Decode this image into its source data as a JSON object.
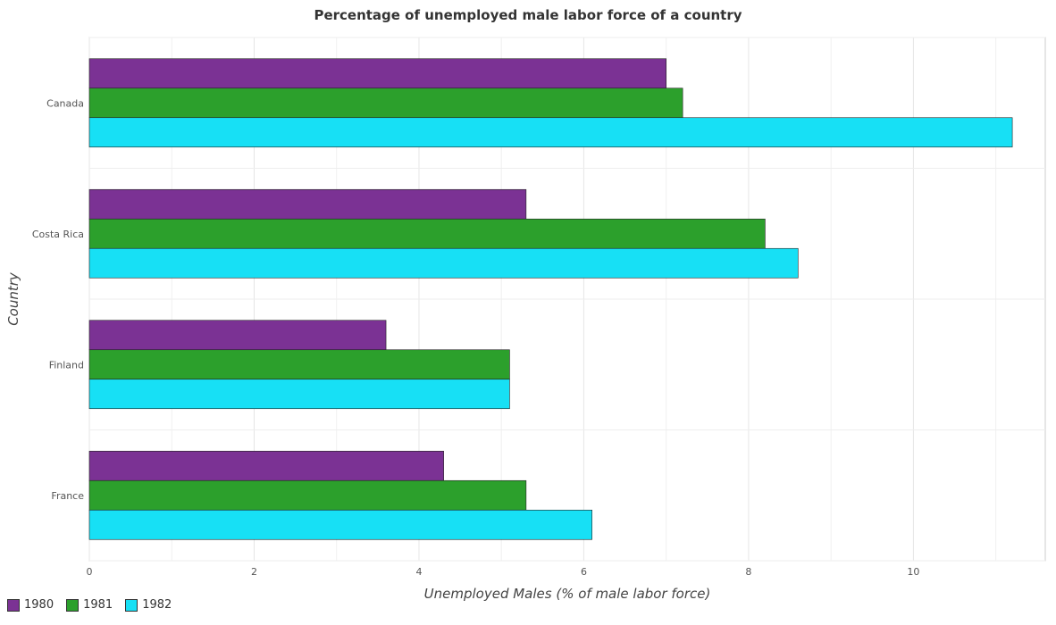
{
  "title": "Percentage of unemployed male labor force of a country",
  "chart_data": {
    "type": "bar",
    "orientation": "horizontal",
    "categories": [
      "Canada",
      "Costa Rica",
      "Finland",
      "France"
    ],
    "series": [
      {
        "name": "1980",
        "color": "#7b3294",
        "values": [
          7.0,
          5.3,
          3.6,
          4.3
        ]
      },
      {
        "name": "1981",
        "color": "#2ca02c",
        "values": [
          7.2,
          8.2,
          5.1,
          5.3
        ]
      },
      {
        "name": "1982",
        "color": "#17e0f5",
        "values": [
          11.2,
          8.6,
          5.1,
          6.1
        ]
      }
    ],
    "xlabel": "Unemployed Males (% of male labor force)",
    "ylabel": "Country",
    "xlim": [
      0,
      11.6
    ],
    "xticks": [
      0,
      2,
      4,
      6,
      8,
      10
    ],
    "grid": true,
    "legend_position": "bottom-left"
  }
}
